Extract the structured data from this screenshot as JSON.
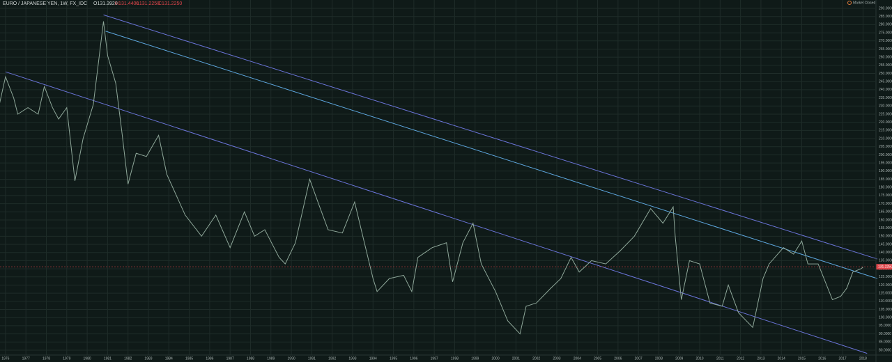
{
  "chart_data": {
    "type": "line",
    "title": "EURO / JAPANESE YEN, 1W, FX_IDC",
    "ohlc": [
      "O131.3920",
      "H131.4400",
      "L131.2250",
      "C131.2250"
    ],
    "status": "Market Closed",
    "x": [
      1975.7,
      1976.0,
      1976.4,
      1976.6,
      1977.1,
      1977.6,
      1977.9,
      1978.3,
      1978.6,
      1979.0,
      1979.4,
      1979.8,
      1980.3,
      1980.8,
      1981.0,
      1981.4,
      1981.7,
      1982.0,
      1982.4,
      1982.9,
      1983.5,
      1983.9,
      1984.8,
      1985.6,
      1986.3,
      1987.0,
      1987.7,
      1988.2,
      1988.7,
      1989.4,
      1989.7,
      1990.2,
      1990.9,
      1991.3,
      1991.8,
      1992.5,
      1993.1,
      1993.5,
      1994.0,
      1994.2,
      1994.8,
      1995.5,
      1995.9,
      1996.2,
      1996.9,
      1997.6,
      1997.9,
      1998.4,
      1998.9,
      1999.3,
      2000.0,
      2000.6,
      2001.2,
      2001.5,
      2002.0,
      2002.7,
      2003.2,
      2003.7,
      2004.1,
      2004.7,
      2005.4,
      2006.1,
      2006.8,
      2007.6,
      2008.2,
      2008.7,
      2008.8,
      2009.1,
      2009.5,
      2010.0,
      2010.5,
      2011.1,
      2011.4,
      2011.9,
      2012.6,
      2013.1,
      2013.4,
      2014.1,
      2014.6,
      2015.0,
      2015.3,
      2015.8,
      2016.5,
      2016.9,
      2017.2,
      2017.5,
      2017.9,
      2018.0
    ],
    "series": [
      {
        "name": "EURJPY",
        "color": "#8fa89a",
        "values": [
          231,
          248,
          235,
          225,
          229,
          225,
          242,
          229,
          222,
          229,
          184,
          210,
          231,
          282,
          261,
          244,
          214,
          182,
          201,
          199,
          212,
          188,
          163,
          150,
          163,
          143,
          165,
          150,
          154,
          137,
          133,
          146,
          185,
          171,
          154,
          152,
          171,
          150,
          124,
          116,
          124,
          126,
          116,
          137,
          143,
          146,
          122,
          146,
          158,
          133,
          116,
          98,
          90,
          107,
          109,
          118,
          124,
          137,
          128,
          135,
          133,
          141,
          150,
          167,
          158,
          168,
          150,
          111,
          135,
          133,
          109,
          107,
          120,
          103,
          94,
          124,
          133,
          143,
          139,
          147,
          133,
          133,
          111,
          113,
          118,
          128,
          130,
          131
        ]
      }
    ],
    "trend_lines": [
      {
        "color": "#6a74d8",
        "x": [
          1976.0,
          2018.2
        ],
        "y": [
          251,
          78
        ]
      },
      {
        "color": "#6a74d8",
        "x": [
          1980.8,
          2018.7
        ],
        "y": [
          286,
          136
        ]
      },
      {
        "color": "#5ea8e0",
        "x": [
          1980.9,
          2018.7
        ],
        "y": [
          276,
          124
        ]
      }
    ],
    "last_price": {
      "value": 131.225,
      "label": "131.2250",
      "color": "#e0464b"
    },
    "xlim": [
      1975.73,
      2018.6
    ],
    "ylim": [
      77,
      293
    ],
    "xticks": [
      1976,
      1977,
      1978,
      1979,
      1980,
      1981,
      1982,
      1983,
      1984,
      1985,
      1986,
      1987,
      1988,
      1989,
      1990,
      1991,
      1992,
      1993,
      1994,
      1995,
      1996,
      1997,
      1998,
      1999,
      2000,
      2001,
      2002,
      2003,
      2004,
      2005,
      2006,
      2007,
      2008,
      2009,
      2010,
      2011,
      2012,
      2013,
      2014,
      2015,
      2016,
      2017,
      2018
    ],
    "yticks": [
      {
        "value": 80,
        "label": "80.0000"
      },
      {
        "value": 85,
        "label": "85.0000"
      },
      {
        "value": 90,
        "label": "90.0000"
      },
      {
        "value": 95,
        "label": "95.0000"
      },
      {
        "value": 100,
        "label": "100.0000"
      },
      {
        "value": 105,
        "label": "105.0000"
      },
      {
        "value": 110,
        "label": "110.0000"
      },
      {
        "value": 115,
        "label": "115.0000"
      },
      {
        "value": 120,
        "label": "120.0000"
      },
      {
        "value": 125,
        "label": "125.0000"
      },
      {
        "value": 130,
        "label": "130.0000"
      },
      {
        "value": 135,
        "label": "135.0000"
      },
      {
        "value": 140,
        "label": "140.0000"
      },
      {
        "value": 145,
        "label": "145.0000"
      },
      {
        "value": 150,
        "label": "150.0000"
      },
      {
        "value": 155,
        "label": "155.0000"
      },
      {
        "value": 160,
        "label": "160.0000"
      },
      {
        "value": 165,
        "label": "165.0000"
      },
      {
        "value": 170,
        "label": "170.0000"
      },
      {
        "value": 175,
        "label": "175.0000"
      },
      {
        "value": 180,
        "label": "180.0000"
      },
      {
        "value": 185,
        "label": "185.0000"
      },
      {
        "value": 190,
        "label": "190.0000"
      },
      {
        "value": 195,
        "label": "195.0000"
      },
      {
        "value": 200,
        "label": "200.0000"
      },
      {
        "value": 205,
        "label": "205.0000"
      },
      {
        "value": 210,
        "label": "210.0000"
      },
      {
        "value": 215,
        "label": "215.0000"
      },
      {
        "value": 220,
        "label": "220.0000"
      },
      {
        "value": 225,
        "label": "225.0000"
      },
      {
        "value": 230,
        "label": "230.0000"
      },
      {
        "value": 235,
        "label": "235.0000"
      },
      {
        "value": 240,
        "label": "240.0000"
      },
      {
        "value": 245,
        "label": "245.0000"
      },
      {
        "value": 250,
        "label": "250.0000"
      },
      {
        "value": 255,
        "label": "255.0000"
      },
      {
        "value": 260,
        "label": "260.0000"
      },
      {
        "value": 265,
        "label": "265.0000"
      },
      {
        "value": 270,
        "label": "270.0000"
      },
      {
        "value": 275,
        "label": "275.0000"
      },
      {
        "value": 280,
        "label": "280.0000"
      },
      {
        "value": 285,
        "label": "285.0000"
      },
      {
        "value": 290,
        "label": "290.0000"
      }
    ],
    "grid": true
  }
}
